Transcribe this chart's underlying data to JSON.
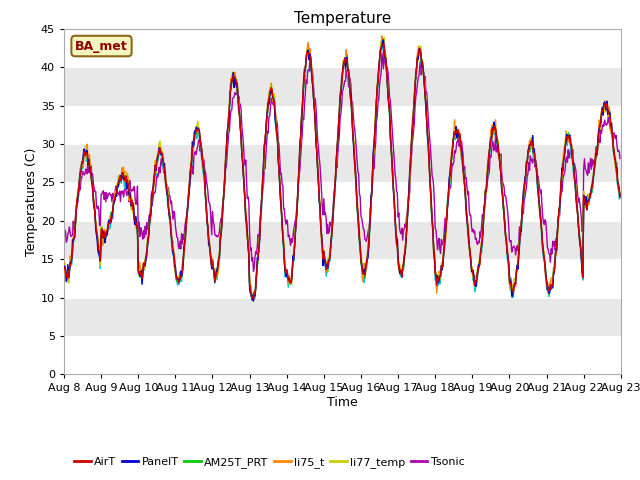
{
  "title": "Temperature",
  "xlabel": "Time",
  "ylabel": "Temperatures (C)",
  "ylim": [
    0,
    45
  ],
  "yticks": [
    0,
    5,
    10,
    15,
    20,
    25,
    30,
    35,
    40,
    45
  ],
  "annotation_text": "BA_met",
  "series_colors": {
    "AirT": "#cc0000",
    "PanelT": "#0000cc",
    "AM25T_PRT": "#00cc00",
    "li75_t": "#ff8800",
    "li77_temp": "#cccc00",
    "Tsonic": "#aa00aa",
    "NR01_PRT": "#00cccc"
  },
  "bg_color": "#ffffff",
  "plot_bg_color": "#ffffff",
  "band_colors": [
    "#ffffff",
    "#e8e8e8"
  ],
  "title_fontsize": 11,
  "axis_label_fontsize": 9,
  "tick_fontsize": 8,
  "legend_fontsize": 8,
  "day_peaks": [
    29,
    26,
    29,
    32,
    39,
    37,
    42,
    41,
    43,
    42,
    32,
    32,
    30,
    31,
    35
  ],
  "day_mins": [
    13,
    18,
    13,
    12,
    13,
    10,
    12,
    14,
    13,
    13,
    12,
    12,
    11,
    11,
    22
  ]
}
